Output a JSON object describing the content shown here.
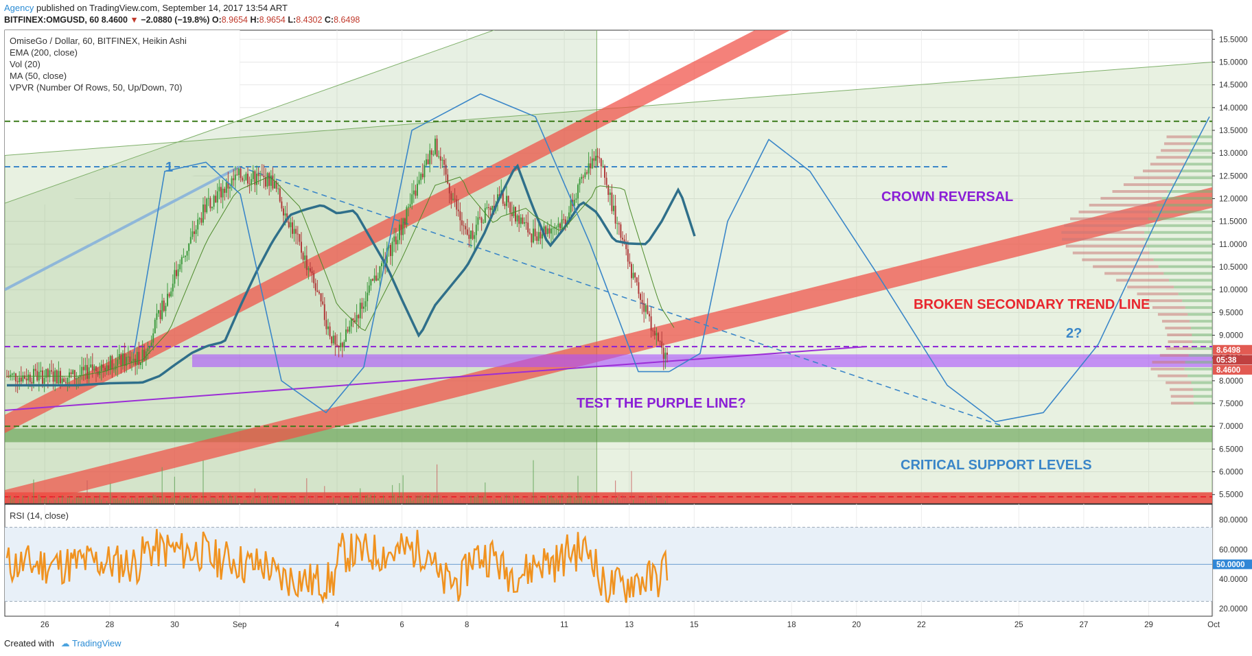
{
  "header": {
    "publisher": "Agency",
    "published_text": "published on TradingView.com, September 14, 2017 13:54 ART",
    "symbol": "BITFINEX:OMGUSD, 60",
    "last": "8.4600",
    "change": "−2.0880 (−19.8%)",
    "o_label": "O:",
    "o": "8.9654",
    "h_label": "H:",
    "h": "8.9654",
    "l_label": "L:",
    "l": "8.4302",
    "c_label": "C:",
    "c": "8.6498"
  },
  "legend": [
    "OmiseGo / Dollar, 60, BITFINEX, Heikin Ashi",
    "EMA (200, close)",
    "Vol (20)",
    "MA (50, close)",
    "VPVR (Number Of Rows, 50, Up/Down, 70)"
  ],
  "rsi_legend": "RSI (14, close)",
  "annotations": {
    "wave1": "1",
    "wave2": "2?",
    "crown": "CROWN REVERSAL",
    "broken": "BROKEN SECONDARY TREND LINE",
    "purple": "TEST THE PURPLE LINE?",
    "support": "CRITICAL SUPPORT LEVELS"
  },
  "price_tags": {
    "top": "8.6498",
    "mid": "05:38",
    "low": "8.4600"
  },
  "rsi_tag": "50.0000",
  "footer": {
    "created": "Created with",
    "brand": "TradingView"
  },
  "colors": {
    "up": "#3d9a3d",
    "down": "#b03a3a",
    "ema": "#2f6f8a",
    "rsi": "#f0921f",
    "accent_red": "#e8453c",
    "purple": "#9b4dff",
    "wave": "#3a86c8",
    "annotation_purple": "#8a1fd6",
    "annotation_red": "#e8262e",
    "annotation_blue": "#3a86c8"
  },
  "chart_data": [
    {
      "type": "candlestick",
      "title": "OmiseGo / Dollar, 60, BITFINEX, Heikin Ashi",
      "x_ticks": [
        "26",
        "28",
        "30",
        "Sep",
        "4",
        "6",
        "8",
        "11",
        "13",
        "15",
        "18",
        "20",
        "22",
        "25",
        "27",
        "29",
        "Oct"
      ],
      "y_ticks": [
        "5.5000",
        "6.0000",
        "6.5000",
        "7.0000",
        "7.5000",
        "8.0000",
        "8.5000",
        "9.0000",
        "9.5000",
        "10.0000",
        "10.5000",
        "11.0000",
        "11.5000",
        "12.0000",
        "12.5000",
        "13.0000",
        "13.5000",
        "14.0000",
        "14.5000",
        "15.0000",
        "15.5000"
      ],
      "ylim": [
        5.3,
        15.7
      ],
      "price_path": [
        {
          "x": "Aug 25",
          "y": 8.1
        },
        {
          "x": "Aug 27",
          "y": 8.1
        },
        {
          "x": "Aug 28",
          "y": 8.4
        },
        {
          "x": "Aug 29",
          "y": 8.5
        },
        {
          "x": "Aug 30",
          "y": 10.3
        },
        {
          "x": "Aug 31",
          "y": 11.9
        },
        {
          "x": "Sep 1",
          "y": 12.5
        },
        {
          "x": "Sep 2",
          "y": 12.4
        },
        {
          "x": "Sep 3",
          "y": 10.7
        },
        {
          "x": "Sep 4",
          "y": 8.6
        },
        {
          "x": "Sep 5",
          "y": 10.0
        },
        {
          "x": "Sep 6",
          "y": 11.4
        },
        {
          "x": "Sep 7",
          "y": 13.2
        },
        {
          "x": "Sep 8",
          "y": 11.1
        },
        {
          "x": "Sep 9",
          "y": 12.1
        },
        {
          "x": "Sep 10",
          "y": 11.2
        },
        {
          "x": "Sep 11",
          "y": 11.5
        },
        {
          "x": "Sep 12",
          "y": 13.1
        },
        {
          "x": "Sep 13",
          "y": 10.5
        },
        {
          "x": "Sep 14",
          "y": 8.65
        }
      ],
      "horizontal_levels": [
        13.7,
        12.7,
        8.75,
        7.0,
        5.45
      ],
      "forecast_wave": [
        {
          "x": "Sep 14",
          "y": 8.2
        },
        {
          "x": "Sep 18",
          "y": 13.3
        },
        {
          "x": "Sep 25",
          "y": 7.05
        },
        {
          "x": "Oct 1",
          "y": 13.8
        }
      ]
    },
    {
      "type": "line",
      "title": "RSI (14, close)",
      "y_ticks": [
        "20.0000",
        "40.0000",
        "60.0000",
        "80.0000"
      ],
      "ylim": [
        15,
        90
      ],
      "bands": [
        25,
        75
      ],
      "mid": 50
    }
  ]
}
